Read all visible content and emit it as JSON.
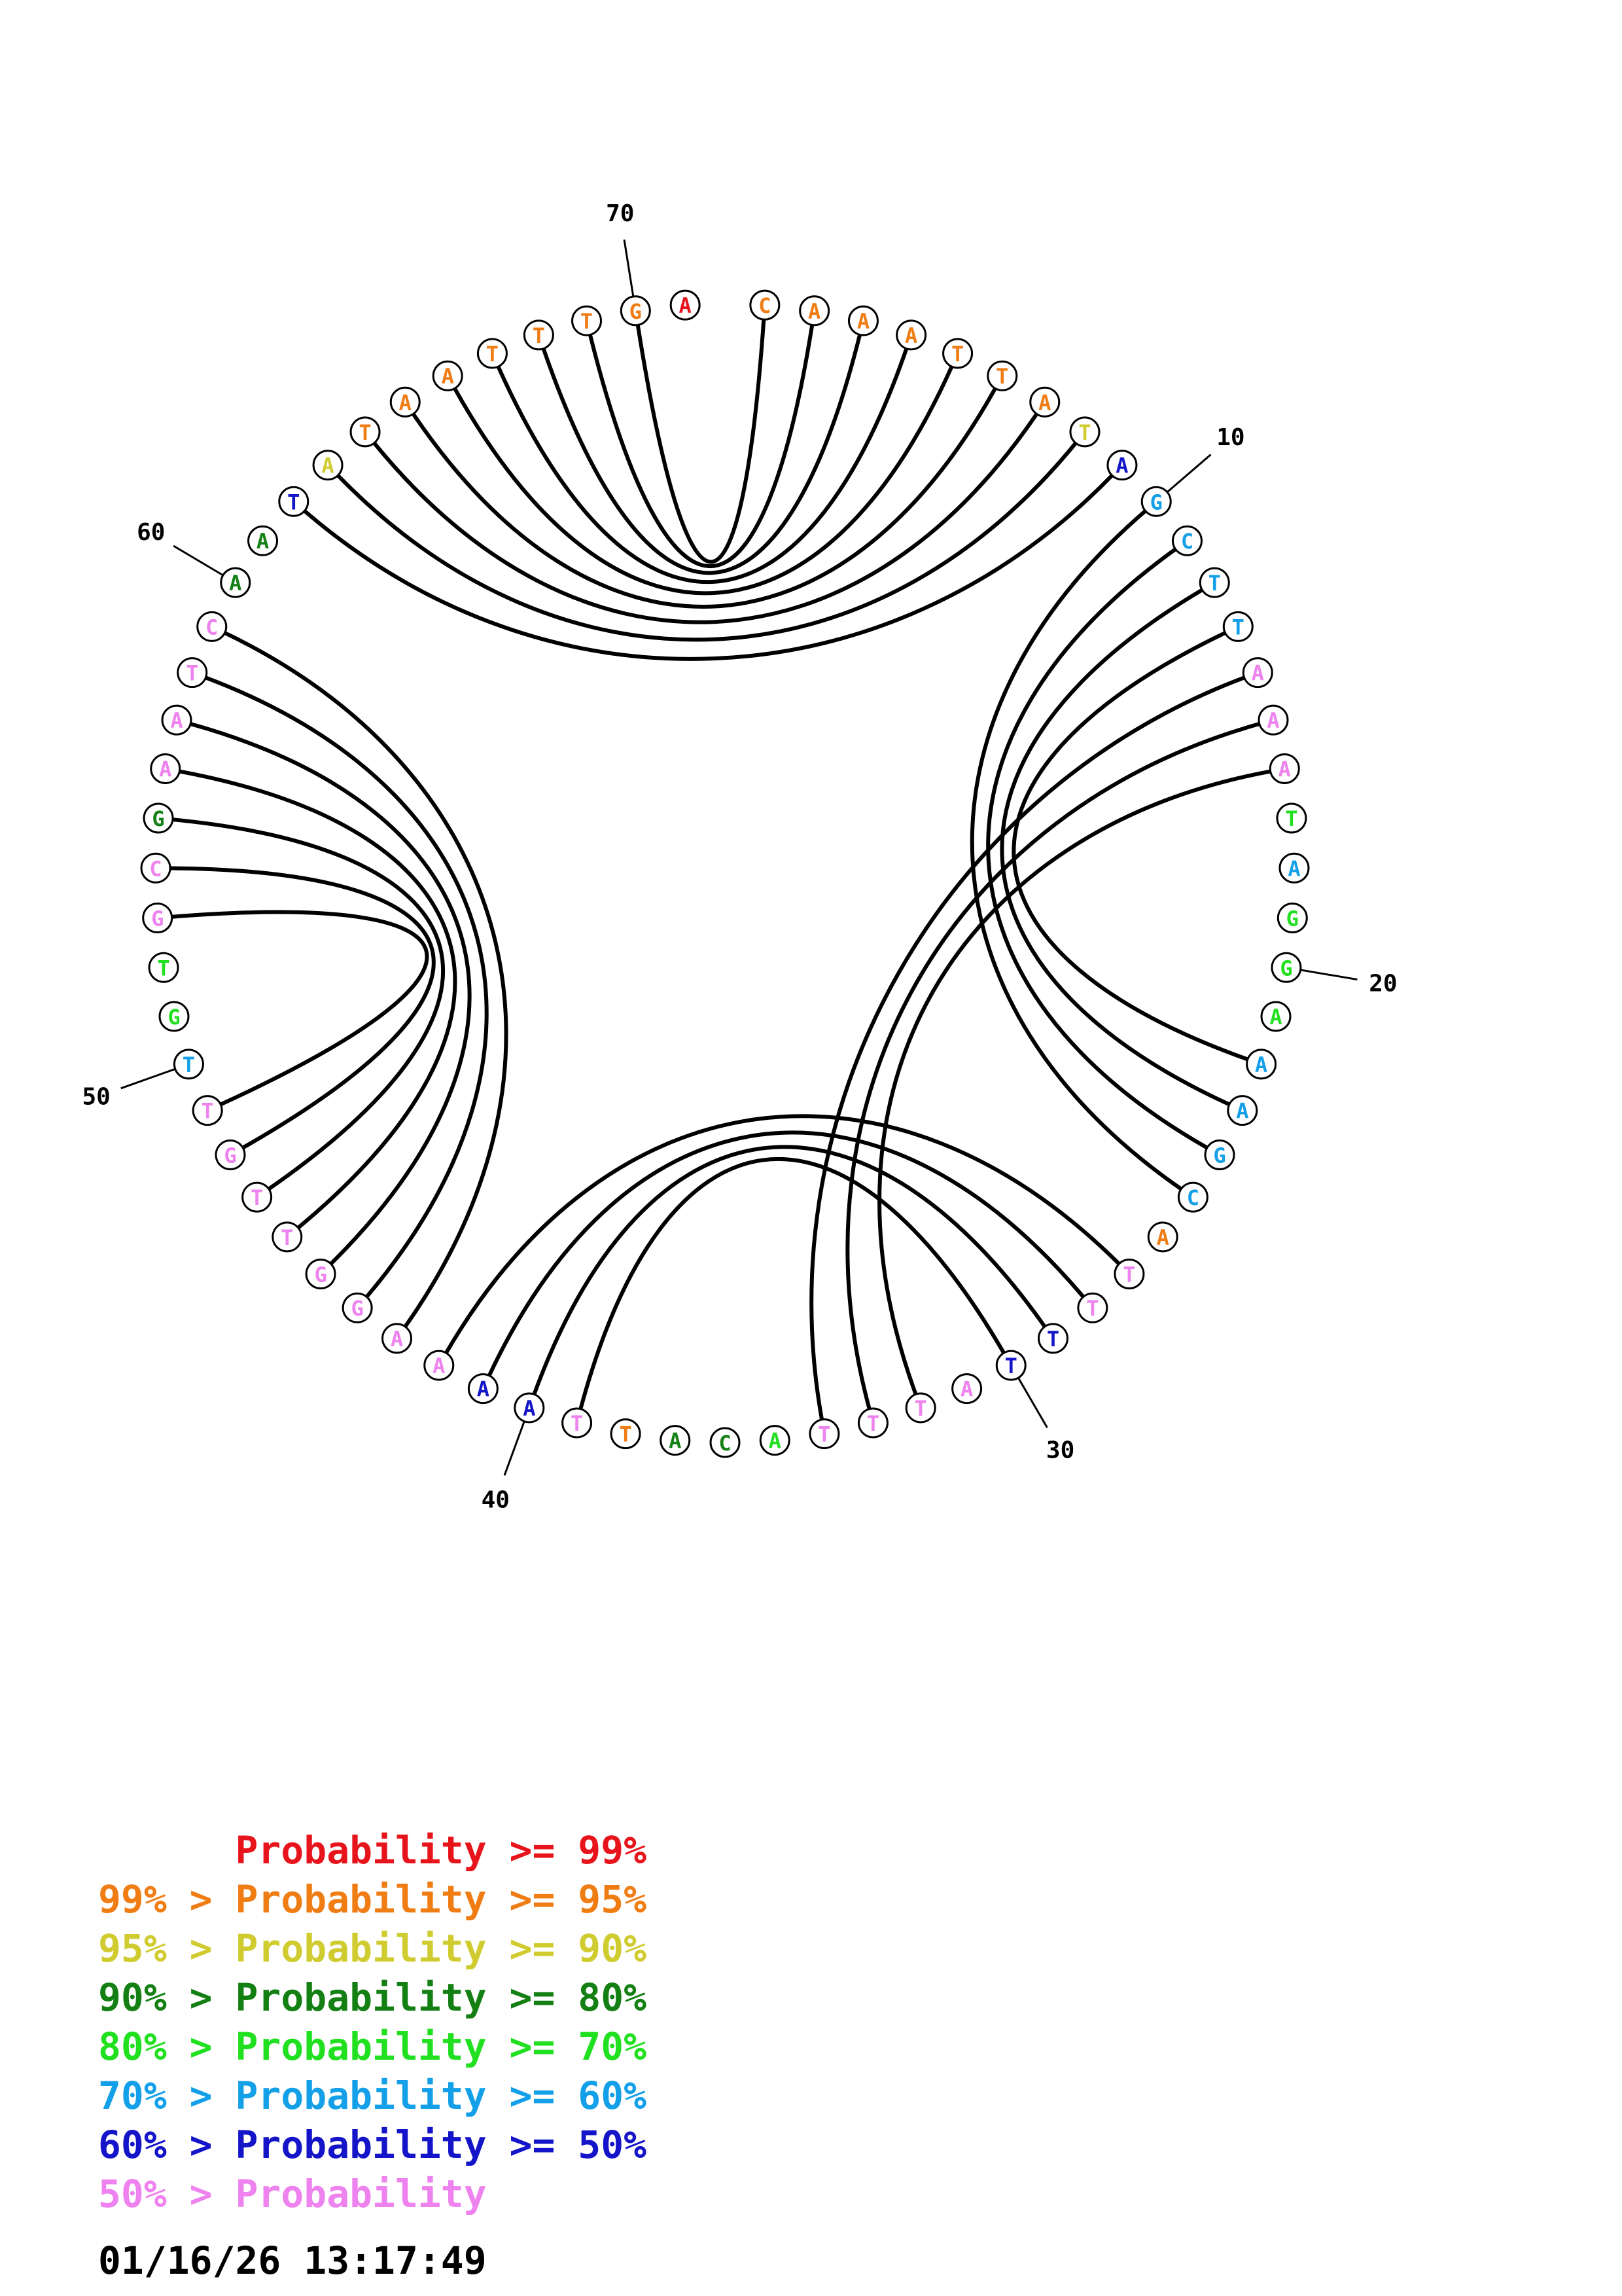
{
  "colors": {
    "p99": "#e8141c",
    "p95": "#f07c14",
    "p90": "#d0cc30",
    "p80": "#148014",
    "p70": "#20e020",
    "p60": "#14a0e8",
    "p50": "#1414c8",
    "plow": "#ee82ee"
  },
  "sequence": [
    {
      "n": 1,
      "b": "C",
      "c": "p95"
    },
    {
      "n": 2,
      "b": "A",
      "c": "p95"
    },
    {
      "n": 3,
      "b": "A",
      "c": "p95"
    },
    {
      "n": 4,
      "b": "A",
      "c": "p95"
    },
    {
      "n": 5,
      "b": "T",
      "c": "p95"
    },
    {
      "n": 6,
      "b": "T",
      "c": "p95"
    },
    {
      "n": 7,
      "b": "A",
      "c": "p95"
    },
    {
      "n": 8,
      "b": "T",
      "c": "p90"
    },
    {
      "n": 9,
      "b": "A",
      "c": "p50"
    },
    {
      "n": 10,
      "b": "G",
      "c": "p60"
    },
    {
      "n": 11,
      "b": "C",
      "c": "p60"
    },
    {
      "n": 12,
      "b": "T",
      "c": "p60"
    },
    {
      "n": 13,
      "b": "T",
      "c": "p60"
    },
    {
      "n": 14,
      "b": "A",
      "c": "plow"
    },
    {
      "n": 15,
      "b": "A",
      "c": "plow"
    },
    {
      "n": 16,
      "b": "A",
      "c": "plow"
    },
    {
      "n": 17,
      "b": "T",
      "c": "p70"
    },
    {
      "n": 18,
      "b": "A",
      "c": "p60"
    },
    {
      "n": 19,
      "b": "G",
      "c": "p70"
    },
    {
      "n": 20,
      "b": "G",
      "c": "p70"
    },
    {
      "n": 21,
      "b": "A",
      "c": "p70"
    },
    {
      "n": 22,
      "b": "A",
      "c": "p60"
    },
    {
      "n": 23,
      "b": "A",
      "c": "p60"
    },
    {
      "n": 24,
      "b": "G",
      "c": "p60"
    },
    {
      "n": 25,
      "b": "C",
      "c": "p60"
    },
    {
      "n": 26,
      "b": "A",
      "c": "p95"
    },
    {
      "n": 27,
      "b": "T",
      "c": "plow"
    },
    {
      "n": 28,
      "b": "T",
      "c": "plow"
    },
    {
      "n": 29,
      "b": "T",
      "c": "p50"
    },
    {
      "n": 30,
      "b": "T",
      "c": "p50"
    },
    {
      "n": 31,
      "b": "A",
      "c": "plow"
    },
    {
      "n": 32,
      "b": "T",
      "c": "plow"
    },
    {
      "n": 33,
      "b": "T",
      "c": "plow"
    },
    {
      "n": 34,
      "b": "T",
      "c": "plow"
    },
    {
      "n": 35,
      "b": "A",
      "c": "p70"
    },
    {
      "n": 36,
      "b": "C",
      "c": "p80"
    },
    {
      "n": 37,
      "b": "A",
      "c": "p80"
    },
    {
      "n": 38,
      "b": "T",
      "c": "p95"
    },
    {
      "n": 39,
      "b": "T",
      "c": "plow"
    },
    {
      "n": 40,
      "b": "A",
      "c": "p50"
    },
    {
      "n": 41,
      "b": "A",
      "c": "p50"
    },
    {
      "n": 42,
      "b": "A",
      "c": "plow"
    },
    {
      "n": 43,
      "b": "A",
      "c": "plow"
    },
    {
      "n": 44,
      "b": "G",
      "c": "plow"
    },
    {
      "n": 45,
      "b": "G",
      "c": "plow"
    },
    {
      "n": 46,
      "b": "T",
      "c": "plow"
    },
    {
      "n": 47,
      "b": "T",
      "c": "plow"
    },
    {
      "n": 48,
      "b": "G",
      "c": "plow"
    },
    {
      "n": 49,
      "b": "T",
      "c": "plow"
    },
    {
      "n": 50,
      "b": "T",
      "c": "p60"
    },
    {
      "n": 51,
      "b": "G",
      "c": "p70"
    },
    {
      "n": 52,
      "b": "T",
      "c": "p70"
    },
    {
      "n": 53,
      "b": "G",
      "c": "plow"
    },
    {
      "n": 54,
      "b": "C",
      "c": "plow"
    },
    {
      "n": 55,
      "b": "G",
      "c": "p80"
    },
    {
      "n": 56,
      "b": "A",
      "c": "plow"
    },
    {
      "n": 57,
      "b": "A",
      "c": "plow"
    },
    {
      "n": 58,
      "b": "T",
      "c": "plow"
    },
    {
      "n": 59,
      "b": "C",
      "c": "plow"
    },
    {
      "n": 60,
      "b": "A",
      "c": "p80"
    },
    {
      "n": 61,
      "b": "A",
      "c": "p80"
    },
    {
      "n": 62,
      "b": "T",
      "c": "p50"
    },
    {
      "n": 63,
      "b": "A",
      "c": "p90"
    },
    {
      "n": 64,
      "b": "T",
      "c": "p95"
    },
    {
      "n": 65,
      "b": "A",
      "c": "p95"
    },
    {
      "n": 66,
      "b": "A",
      "c": "p95"
    },
    {
      "n": 67,
      "b": "T",
      "c": "p95"
    },
    {
      "n": 68,
      "b": "T",
      "c": "p95"
    },
    {
      "n": 69,
      "b": "T",
      "c": "p95"
    },
    {
      "n": 70,
      "b": "G",
      "c": "p95"
    },
    {
      "n": 71,
      "b": "A",
      "c": "p99"
    }
  ],
  "pairs": [
    [
      1,
      70
    ],
    [
      2,
      69
    ],
    [
      3,
      68
    ],
    [
      4,
      67
    ],
    [
      5,
      66
    ],
    [
      6,
      65
    ],
    [
      7,
      64
    ],
    [
      8,
      63
    ],
    [
      9,
      62
    ],
    [
      10,
      25
    ],
    [
      11,
      24
    ],
    [
      12,
      23
    ],
    [
      13,
      22
    ],
    [
      14,
      34
    ],
    [
      15,
      33
    ],
    [
      16,
      32
    ],
    [
      27,
      42
    ],
    [
      28,
      41
    ],
    [
      29,
      40
    ],
    [
      30,
      39
    ],
    [
      43,
      59
    ],
    [
      44,
      58
    ],
    [
      45,
      57
    ],
    [
      46,
      56
    ],
    [
      47,
      55
    ],
    [
      48,
      54
    ],
    [
      49,
      53
    ]
  ],
  "position_labels": [
    "10",
    "20",
    "30",
    "40",
    "50",
    "60",
    "70"
  ],
  "legend": [
    {
      "prefix": "    ",
      "text": "Probability >= 99%",
      "c": "p99"
    },
    {
      "prefix": "99% > ",
      "text": "Probability >= 95%",
      "c": "p95"
    },
    {
      "prefix": "95% > ",
      "text": "Probability >= 90%",
      "c": "p90"
    },
    {
      "prefix": "90% > ",
      "text": "Probability >= 80%",
      "c": "p80"
    },
    {
      "prefix": "80% > ",
      "text": "Probability >= 70%",
      "c": "p70"
    },
    {
      "prefix": "70% > ",
      "text": "Probability >= 60%",
      "c": "p60"
    },
    {
      "prefix": "60% > ",
      "text": "Probability >= 50%",
      "c": "p50"
    },
    {
      "prefix": "50% > ",
      "text": "Probability",
      "c": "plow"
    }
  ],
  "timestamp": "01/16/26 13:17:49"
}
